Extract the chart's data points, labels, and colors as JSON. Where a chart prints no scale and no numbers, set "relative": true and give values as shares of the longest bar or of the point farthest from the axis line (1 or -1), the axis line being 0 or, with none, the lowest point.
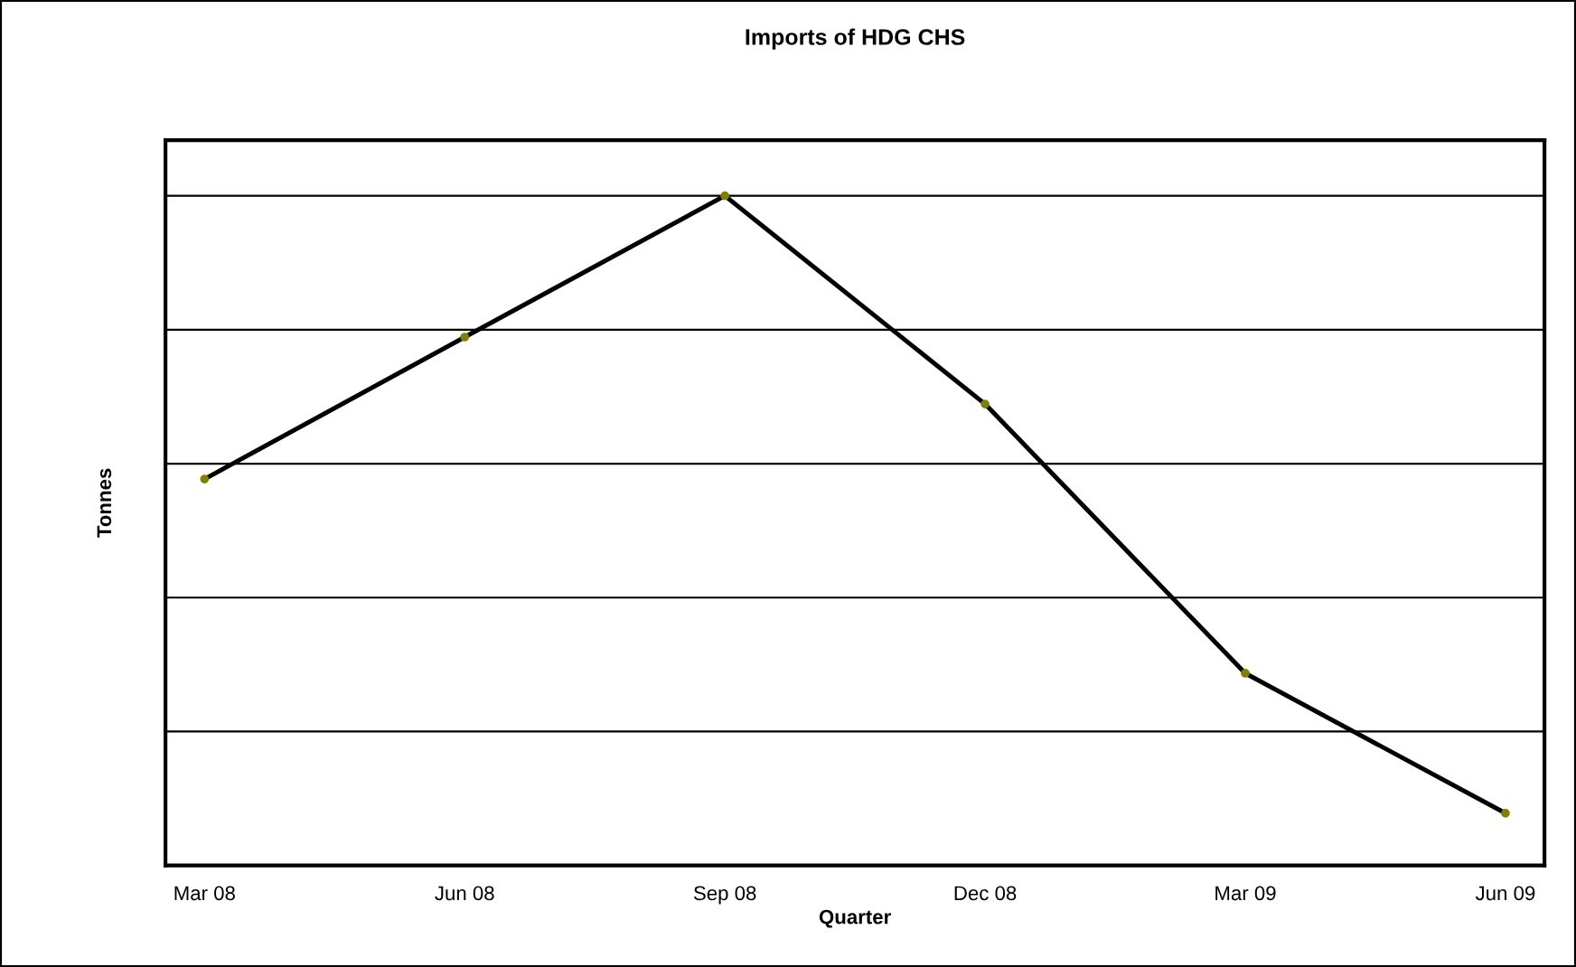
{
  "chart_data": {
    "type": "line",
    "title": "Imports of HDG CHS",
    "xlabel": "Quarter",
    "ylabel": "Tonnes",
    "categories": [
      "Mar 08",
      "Jun 08",
      "Sep 08",
      "Dec 08",
      "Mar 09",
      "Jun 09"
    ],
    "series": [
      {
        "color": "#000000",
        "values": [
          0.577,
          0.789,
          1,
          0.689,
          0.287,
          0.078
        ]
      }
    ],
    "relative": true,
    "grid": "y",
    "marker": "circle",
    "line_style": "solid"
  }
}
